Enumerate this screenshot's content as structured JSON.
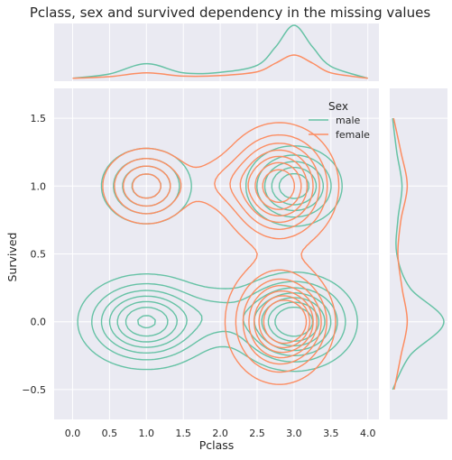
{
  "chart_data": {
    "type": "kde-jointplot",
    "title": "Pclass, sex and survived dependency in the missing values",
    "xlabel": "Pclass",
    "ylabel": "Survived",
    "xlim": [
      -0.25,
      4.15
    ],
    "ylim": [
      -0.72,
      1.72
    ],
    "x_ticks": [
      "0.0",
      "0.5",
      "1.0",
      "1.5",
      "2.0",
      "2.5",
      "3.0",
      "3.5",
      "4.0"
    ],
    "y_ticks": [
      "−0.5",
      "0.0",
      "0.5",
      "1.0",
      "1.5"
    ],
    "grid": true,
    "legend": {
      "title": "Sex",
      "placement": "top-right",
      "entries": [
        "male",
        "female"
      ]
    },
    "series": [
      {
        "name": "male",
        "color": "#66c2a5",
        "contour_peaks": [
          {
            "pclass": 1.0,
            "survived": 0.0
          },
          {
            "pclass": 1.0,
            "survived": 1.0
          },
          {
            "pclass": 3.0,
            "survived": 0.0
          },
          {
            "pclass": 3.0,
            "survived": 1.0
          }
        ],
        "marginal_pclass": {
          "x": [
            0.0,
            0.5,
            1.0,
            1.5,
            2.0,
            2.5,
            2.75,
            3.0,
            3.25,
            3.5,
            4.0
          ],
          "density": [
            0.02,
            0.1,
            0.29,
            0.12,
            0.13,
            0.26,
            0.6,
            1.0,
            0.6,
            0.24,
            0.02
          ]
        },
        "marginal_survived": {
          "y": [
            -0.5,
            -0.25,
            0.0,
            0.25,
            0.5,
            0.75,
            1.0,
            1.25,
            1.5
          ],
          "density": [
            0.02,
            0.35,
            1.0,
            0.35,
            0.1,
            0.12,
            0.2,
            0.1,
            0.02
          ]
        }
      },
      {
        "name": "female",
        "color": "#fc8d62",
        "contour_peaks": [
          {
            "pclass": 1.0,
            "survived": 1.0
          },
          {
            "pclass": 2.8,
            "survived": 1.0
          },
          {
            "pclass": 2.8,
            "survived": 0.0
          },
          {
            "pclass": 3.0,
            "survived": 0.0
          }
        ],
        "marginal_pclass": {
          "x": [
            0.0,
            0.5,
            1.0,
            1.5,
            2.0,
            2.5,
            2.75,
            3.0,
            3.25,
            3.5,
            4.0
          ],
          "density": [
            0.02,
            0.05,
            0.12,
            0.06,
            0.07,
            0.14,
            0.3,
            0.45,
            0.3,
            0.12,
            0.02
          ]
        },
        "marginal_survived": {
          "y": [
            -0.5,
            -0.25,
            0.0,
            0.25,
            0.5,
            0.75,
            1.0,
            1.25,
            1.5
          ],
          "density": [
            0.05,
            0.18,
            0.3,
            0.2,
            0.12,
            0.18,
            0.3,
            0.18,
            0.04
          ]
        }
      }
    ]
  }
}
